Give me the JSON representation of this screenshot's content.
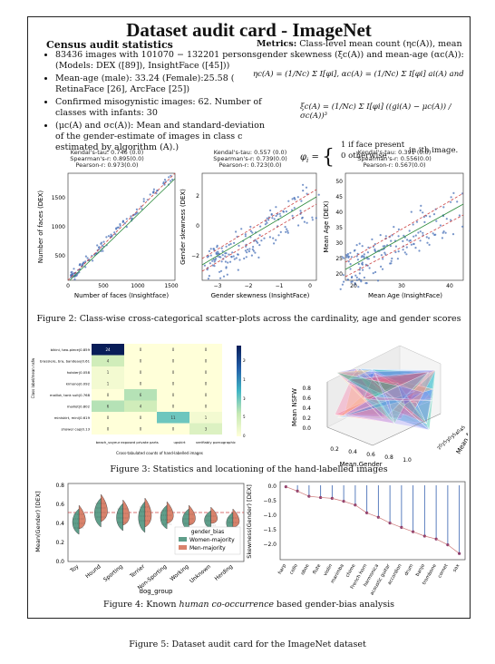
{
  "title": "Dataset audit card - ImageNet",
  "census": {
    "heading": "Census audit statistics",
    "items": [
      "83436 images with 101070 − 132201 persons (Models: DEX ([89]), InsightFace ([45]))",
      "Mean-age (male): 33.24 (Female):25.58 ( RetinaFace [26], ArcFace [25])",
      "Confirmed misogynistic images: 62. Number of classes with infants: 30",
      "(μc(A) and σc(A)): Mean and standard-deviation of the gender-estimate of images in class c estimated by algorithm (A).)"
    ]
  },
  "metrics": {
    "label": "Metrics:",
    "text": "Class-level mean count (ηc(A)), mean gender skewness (ξc(A)) and mean-age (αc(A)):",
    "eq1": "ηc(A) = (1/Nc) Σ I[φi], αc(A) = (1/Nc) Σ I[φi] ai(A) and",
    "eq2": "ξc(A) = (1/Nc) Σ I[φi] ((gi(A) − μc(A)) / σc(A))³",
    "eq3_1": "1   if face present",
    "eq3_2": "0   otherwise",
    "eq3_tail": "in ith image."
  },
  "fig2": {
    "caption": "Figure 2: Class-wise cross-categorical scatter-plots across the cardinality, age and gender scores",
    "panels": [
      {
        "stats": [
          "Kendal's-tau: 0.746 (0.0)",
          "Spearman's-r: 0.895(0.0)",
          "Pearson-r: 0.973(0.0)"
        ],
        "xlabel": "Number of faces (Insightface)",
        "ylabel": "Number of faces (DEX)",
        "xticks": [
          "0",
          "500",
          "1000",
          "1500"
        ],
        "yticks": [
          "500",
          "1000",
          "1500"
        ]
      },
      {
        "stats": [
          "Kendal's-tau: 0.557 (0.0)",
          "Spearman's-r: 0.739(0.0)",
          "Pearson-r: 0.723(0.0)"
        ],
        "xlabel": "Gender skewness (InsightFace)",
        "ylabel": "Gender skewness (DEX)",
        "xticks": [
          "−3",
          "−2",
          "−1",
          "0"
        ],
        "yticks": [
          "−2",
          "0",
          "2"
        ]
      },
      {
        "stats": [
          "Kendal's-tau: 0.391 (0.0)",
          "Spearman's-r: 0.556(0.0)",
          "Pearson-r: 0.567(0.0)"
        ],
        "xlabel": "Mean Age (InsightFace)",
        "ylabel": "Mean Age (DEX)",
        "xticks": [
          "20",
          "30",
          "40"
        ],
        "yticks": [
          "20",
          "25",
          "30",
          "35",
          "40",
          "45",
          "50"
        ]
      }
    ]
  },
  "fig3": {
    "caption": "Figure 3: Statistics and locationing of the hand-labelled images",
    "heatmap": {
      "rows": [
        "bikini, two-piece|0.859",
        "brassiere, bra, bandeau|0.61",
        "holster|0.058",
        "kimono|0.092",
        "maillot, tank suit|0.768",
        "maillot|0.802",
        "miniskirt, mini|0.619",
        "shower cap|0.13"
      ],
      "cols": [
        "beach_voyeur",
        "exposed private parts",
        "upskirt",
        "verifiably pornographic"
      ],
      "values": [
        [
          24,
          0,
          0,
          0
        ],
        [
          4,
          0,
          0,
          0
        ],
        [
          1,
          0,
          0,
          0
        ],
        [
          1,
          0,
          0,
          0
        ],
        [
          0,
          6,
          0,
          0
        ],
        [
          6,
          4,
          0,
          0
        ],
        [
          0,
          0,
          11,
          1
        ],
        [
          0,
          0,
          0,
          3
        ]
      ],
      "ylabel": "Class label/mean nsfw",
      "xlabel": "Cross-tabulated counts of hand-labelled images",
      "colorbar": [
        "0",
        "5",
        "10",
        "15",
        "20"
      ]
    },
    "surface": {
      "xlabel": "Mean Gender",
      "ylabel": "Mean Age",
      "zlabel": "Mean NSFW",
      "xticks": [
        "0.2",
        "0.4",
        "0.6",
        "0.8",
        "1.0"
      ],
      "zticks": [
        "0.0",
        "0.2",
        "0.4",
        "0.6",
        "0.8"
      ],
      "yticks": [
        "20",
        "25",
        "30",
        "35",
        "40",
        "45"
      ]
    }
  },
  "fig4": {
    "caption": "Figure 4: Known human co-occurrence based gender-bias analysis",
    "violin": {
      "ylabel": "Mean(Gender) [DEX]",
      "xlabel": "dog_group",
      "categories": [
        "Toy",
        "Hound",
        "Sporting",
        "Terrier",
        "Non-Sporting",
        "Working",
        "Unknown",
        "Herding"
      ],
      "yticks": [
        "0.0",
        "0.2",
        "0.4",
        "0.6",
        "0.8"
      ],
      "legend_title": "gender_bias",
      "legend": [
        "Women-majority",
        "Men-majority"
      ],
      "colors": {
        "women": "#5f9e8a",
        "men": "#d9826b"
      }
    },
    "lollipop": {
      "ylabel": "Skewness(Gender) [DEX]",
      "yticks": [
        "0.0",
        "−0.5",
        "−1.0",
        "−1.5",
        "−2.0"
      ],
      "categories": [
        "harp",
        "cello",
        "oboe",
        "flute",
        "violin",
        "marimba",
        "chime",
        "French horn",
        "harmonica",
        "acoustic guitar",
        "accordion",
        "drum",
        "banjo",
        "trombone",
        "cornet",
        "sax"
      ],
      "values": [
        -0.05,
        -0.2,
        -0.38,
        -0.42,
        -0.45,
        -0.55,
        -0.68,
        -0.95,
        -1.1,
        -1.3,
        -1.45,
        -1.6,
        -1.75,
        -1.85,
        -2.05,
        -2.35
      ]
    }
  },
  "outer_caption": "Figure 5: Dataset audit card for the ImageNet dataset"
}
